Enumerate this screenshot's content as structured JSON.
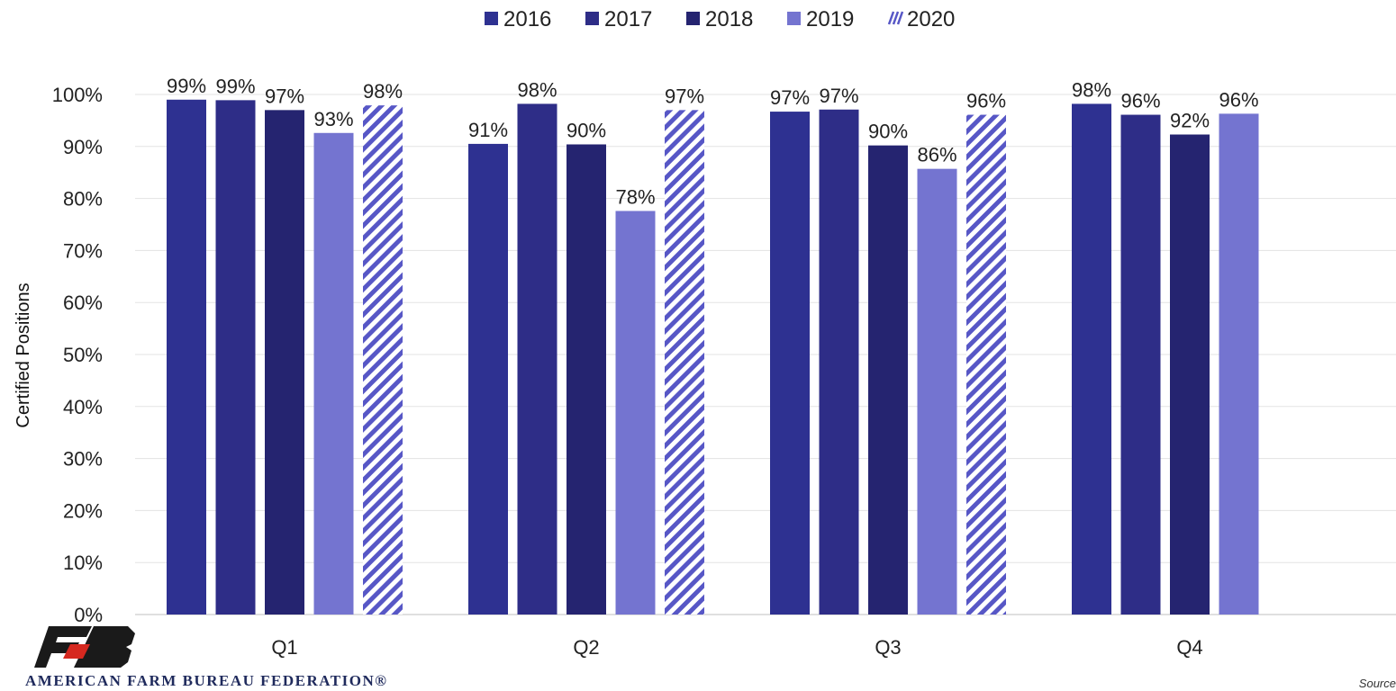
{
  "chart_data": {
    "type": "bar",
    "title": "",
    "xlabel": "",
    "ylabel": "Certified Positions",
    "ylim": [
      0,
      100
    ],
    "yticks": [
      "0%",
      "10%",
      "20%",
      "30%",
      "40%",
      "50%",
      "60%",
      "70%",
      "80%",
      "90%",
      "100%"
    ],
    "categories": [
      "Q1",
      "Q2",
      "Q3",
      "Q4"
    ],
    "series": [
      {
        "name": "2016",
        "values": [
          99,
          90.5,
          96.7,
          98.2
        ],
        "labels": [
          "99%",
          "91%",
          "97%",
          "98%"
        ],
        "color": "#2e3191",
        "pattern": "solid"
      },
      {
        "name": "2017",
        "values": [
          98.9,
          98.2,
          97.1,
          96.1
        ],
        "labels": [
          "99%",
          "98%",
          "97%",
          "96%"
        ],
        "color": "#2e2d87",
        "pattern": "solid"
      },
      {
        "name": "2018",
        "values": [
          97,
          90.4,
          90.2,
          92.3
        ],
        "labels": [
          "97%",
          "90%",
          "90%",
          "92%"
        ],
        "color": "#252470",
        "pattern": "solid"
      },
      {
        "name": "2019",
        "values": [
          92.6,
          77.6,
          85.7,
          96.3
        ],
        "labels": [
          "93%",
          "78%",
          "86%",
          "96%"
        ],
        "color": "#7474d0",
        "pattern": "solid"
      },
      {
        "name": "2020",
        "values": [
          97.9,
          97,
          96.1,
          null
        ],
        "labels": [
          "98%",
          "97%",
          "96%",
          ""
        ],
        "color": "#5757c6",
        "pattern": "diagonal-stripes"
      }
    ],
    "grid": true,
    "legend": "top-center"
  },
  "branding": {
    "logo_text": "AMERICAN FARM BUREAU FEDERATION®",
    "logo_colors": {
      "primary": "#1a1a1a",
      "accent": "#d6281f"
    }
  },
  "footer": {
    "source_text": "Source"
  }
}
